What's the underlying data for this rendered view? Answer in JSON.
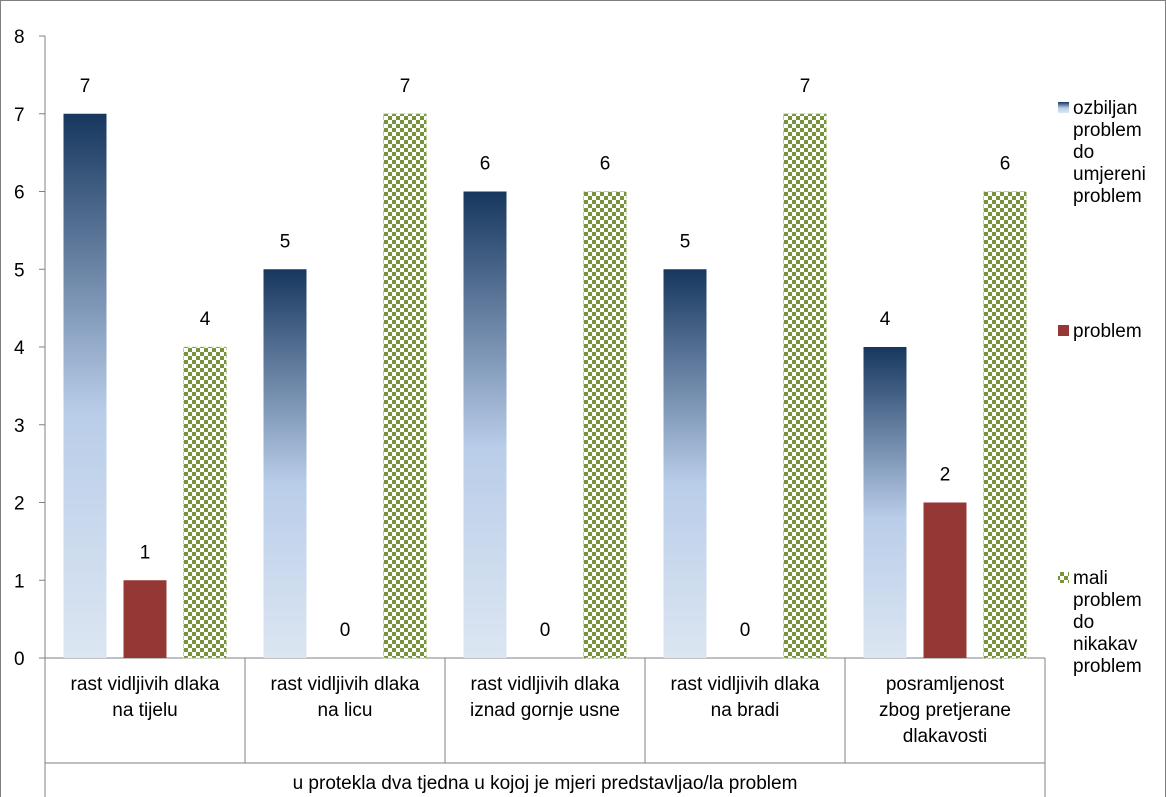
{
  "chart_data": {
    "type": "bar",
    "title": "",
    "xlabel": "u protekla dva tjedna u kojoj je mjeri predstavljao/la problem",
    "ylabel": "",
    "ylim": [
      0,
      8
    ],
    "yticks": [
      "0",
      "1",
      "2",
      "3",
      "4",
      "5",
      "6",
      "7",
      "8"
    ],
    "categories": [
      [
        "rast vidljivih dlaka",
        "na tijelu"
      ],
      [
        "rast vidljivih dlaka",
        "na licu"
      ],
      [
        "rast vidljivih dlaka",
        "iznad gornje usne"
      ],
      [
        "rast vidljivih dlaka",
        "na bradi"
      ],
      [
        "posramljenost",
        "zbog pretjerane",
        "dlakavosti"
      ]
    ],
    "series": [
      {
        "name": [
          "ozbiljan",
          "problem",
          "do",
          "umjereni",
          "problem"
        ],
        "values": [
          7,
          5,
          6,
          5,
          4
        ],
        "color": "#1f3864",
        "fill": "gradient-blue"
      },
      {
        "name": [
          "problem"
        ],
        "values": [
          1,
          0,
          0,
          0,
          2
        ],
        "color": "#953735",
        "fill": "solid"
      },
      {
        "name": [
          "mali",
          "problem",
          "do",
          "nikakav",
          "problem"
        ],
        "values": [
          4,
          7,
          6,
          7,
          6
        ],
        "color": "#77933c",
        "fill": "checker-green"
      }
    ],
    "data_labels": true,
    "grid": false,
    "legend_position": "right"
  }
}
